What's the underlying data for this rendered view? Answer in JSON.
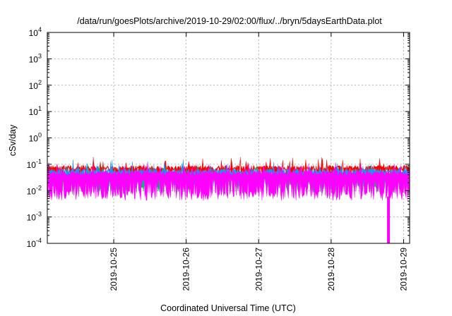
{
  "chart_data": {
    "type": "area",
    "title": "/data/run/goesPlots/archive/2019-10-29/02:00/flux/../bryn/5daysEarthData.plot",
    "xlabel": "Coordinated Universal Time (UTC)",
    "ylabel": "cSv/day",
    "yscale": "log",
    "ylim": [
      0.0001,
      10000
    ],
    "y_ticks": [
      {
        "value": 0.0001,
        "base": "10",
        "exp": "-4"
      },
      {
        "value": 0.001,
        "base": "10",
        "exp": "-3"
      },
      {
        "value": 0.01,
        "base": "10",
        "exp": "-2"
      },
      {
        "value": 0.1,
        "base": "10",
        "exp": "-1"
      },
      {
        "value": 1,
        "base": "10",
        "exp": "0"
      },
      {
        "value": 10,
        "base": "10",
        "exp": "1"
      },
      {
        "value": 100,
        "base": "10",
        "exp": "2"
      },
      {
        "value": 1000,
        "base": "10",
        "exp": "3"
      },
      {
        "value": 10000,
        "base": "10",
        "exp": "4"
      }
    ],
    "xlim": [
      "2019-10-24 02:00",
      "2019-10-29 02:00"
    ],
    "x_ticks": [
      "2019-10-25",
      "2019-10-26",
      "2019-10-27",
      "2019-10-28",
      "2019-10-29"
    ],
    "grid": true,
    "legend": "none",
    "series": [
      {
        "color": "#ff0000",
        "typical_high": 0.08,
        "typical_low": 0.03
      },
      {
        "color": "#00c060",
        "typical_high": 0.045,
        "typical_low": 0.012
      },
      {
        "color": "#1e90ff",
        "typical_high": 0.06,
        "typical_low": 0.02
      },
      {
        "color": "#ff00ff",
        "typical_high": 0.05,
        "typical_low": 0.006
      },
      {
        "color": "#ff00ff",
        "note_value": 0.0001,
        "x": "2019-10-28 19:00"
      }
    ]
  }
}
